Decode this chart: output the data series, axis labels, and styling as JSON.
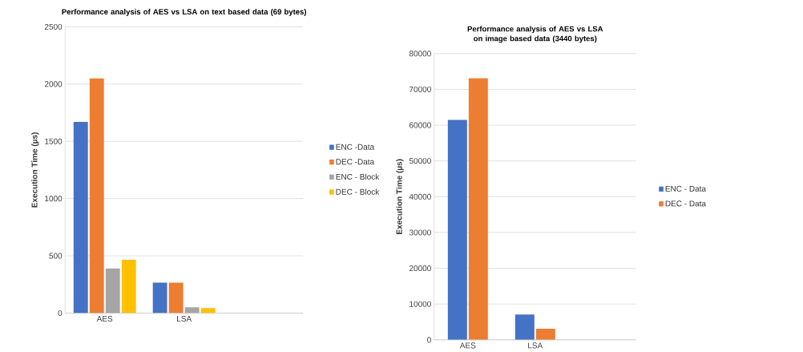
{
  "chart_data": [
    {
      "type": "bar",
      "title": "Performance analysis of  AES vs LSA on text based data (69 bytes)",
      "ylabel": "Execution Time (µs)",
      "categories": [
        "AES",
        "LSA",
        null
      ],
      "series": [
        {
          "name": "ENC -Data",
          "color": "#4472c4",
          "values": [
            1670,
            265,
            null
          ]
        },
        {
          "name": "DEC -Data",
          "color": "#ed7d31",
          "values": [
            2050,
            265,
            null
          ]
        },
        {
          "name": "ENC - Block",
          "color": "#a5a5a5",
          "values": [
            390,
            50,
            null
          ]
        },
        {
          "name": "DEC - Block",
          "color": "#ffc000",
          "values": [
            465,
            44,
            null
          ]
        }
      ],
      "ylim": [
        0,
        2500
      ],
      "yticks": [
        0,
        500,
        1000,
        1500,
        2000,
        2500
      ],
      "grid": "y",
      "legend": "right"
    },
    {
      "type": "bar",
      "title": "Performance analysis of  AES vs LSA on image based data (3440 bytes)",
      "ylabel": "Execution Time (µs)",
      "categories": [
        "AES",
        "LSA",
        null
      ],
      "series": [
        {
          "name": "ENC - Data",
          "color": "#4472c4",
          "values": [
            61500,
            7100,
            null
          ]
        },
        {
          "name": "DEC - Data",
          "color": "#ed7d31",
          "values": [
            73100,
            3100,
            null
          ]
        }
      ],
      "ylim": [
        0,
        80000
      ],
      "yticks": [
        0,
        10000,
        20000,
        30000,
        40000,
        50000,
        60000,
        70000,
        80000
      ],
      "grid": "y",
      "legend": "right"
    }
  ]
}
